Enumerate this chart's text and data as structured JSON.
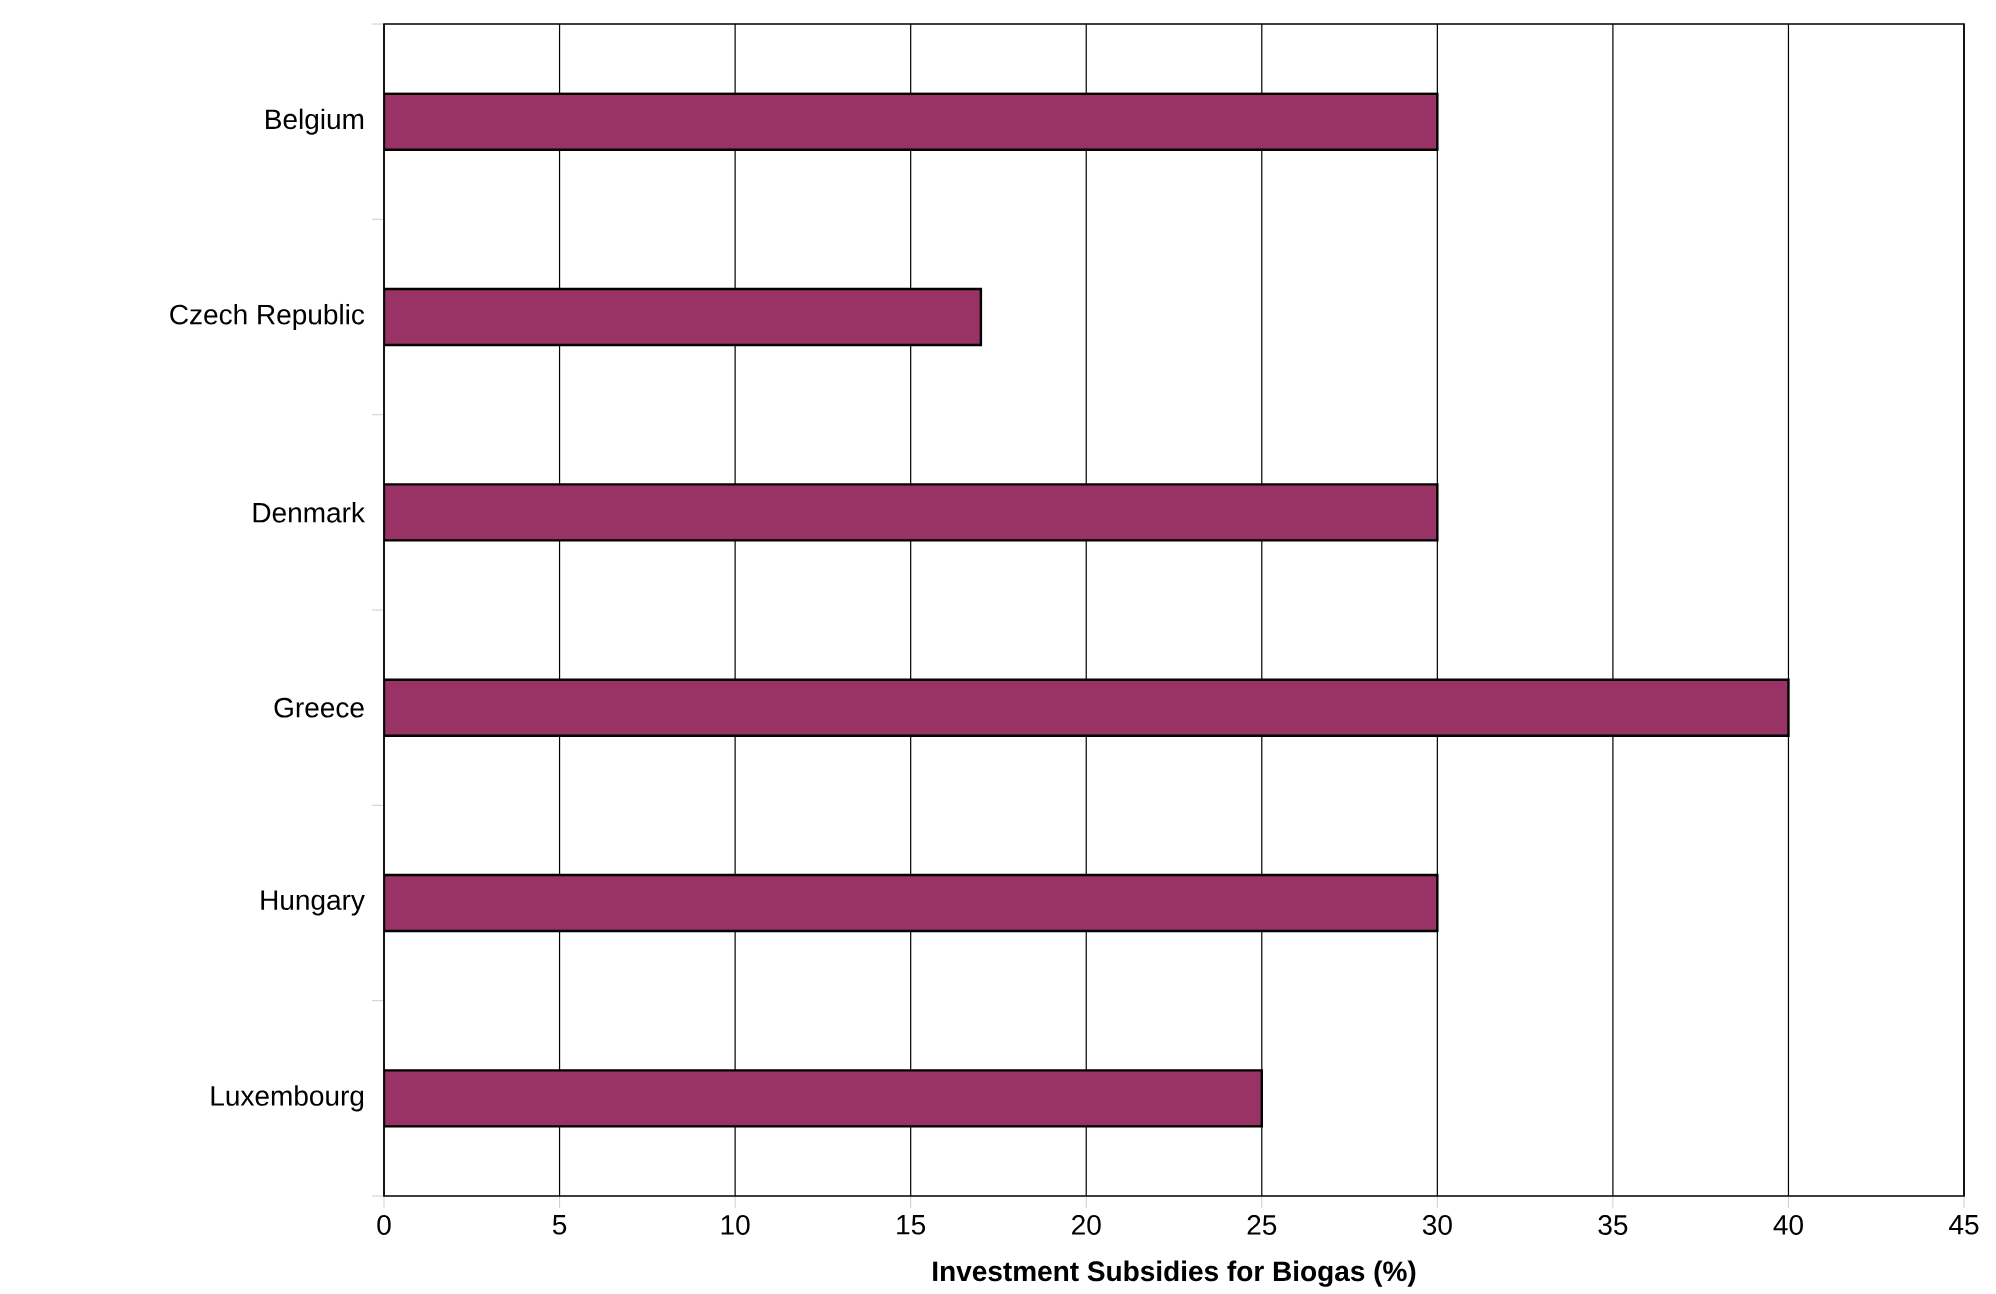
{
  "chart_data": {
    "type": "bar",
    "orientation": "horizontal",
    "categories": [
      "Belgium",
      "Czech Republic",
      "Denmark",
      "Greece",
      "Hungary",
      "Luxembourg"
    ],
    "values": [
      30,
      17,
      30,
      40,
      30,
      25
    ],
    "color": "#993366",
    "xlim": [
      0,
      45
    ],
    "xticks": [
      0,
      5,
      10,
      15,
      20,
      25,
      30,
      35,
      40,
      45
    ],
    "xlabel": "Investment Subsidies for Biogas (%)",
    "grid": "x"
  }
}
